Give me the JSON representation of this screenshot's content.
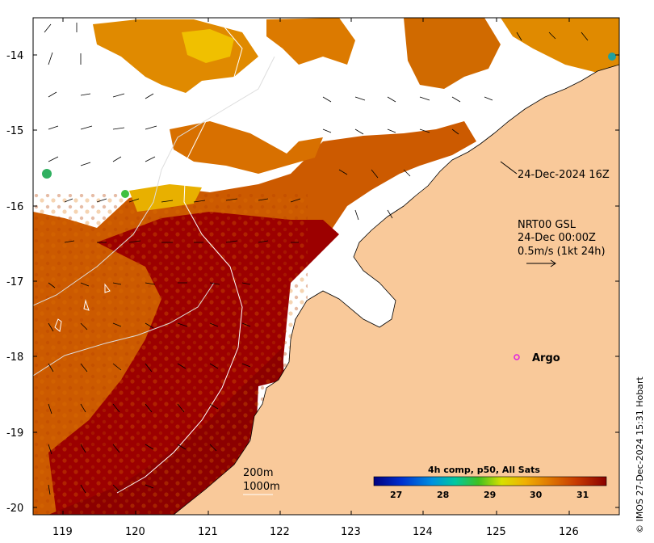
{
  "map": {
    "lon_ticks": [
      "119",
      "120",
      "121",
      "122",
      "123",
      "124",
      "125",
      "126"
    ],
    "lat_ticks": [
      "-14",
      "-15",
      "-16",
      "-17",
      "-18",
      "-19",
      "-20"
    ],
    "lon_range": [
      118.6,
      126.8
    ],
    "lat_range": [
      -20.1,
      -13.5
    ],
    "annotations": {
      "timestamp_callout": "24-Dec-2024 16Z",
      "current_product": "NRT00 GSL",
      "current_time": "24-Dec 00:00Z",
      "current_scale": "0.5m/s (1kt 24h)",
      "argo_label": "Argo",
      "isobath_200": "200m",
      "isobath_1000": "1000m"
    },
    "argo_float": {
      "lon": 125.3,
      "lat": -18.0
    },
    "colorbar": {
      "title": "4h comp, p50, All Sats",
      "tick_labels": [
        "27",
        "28",
        "29",
        "30",
        "31"
      ],
      "range": [
        26.5,
        31.5
      ]
    },
    "credit": "© IMOS 27-Dec-2024 15:31 Hobart",
    "colors": {
      "land": "#f9c99a",
      "hot": "#9c0000",
      "warm": "#cc5a00",
      "mid": "#e08a00",
      "cool": "#f0c000",
      "cloud": "#ffffff"
    }
  }
}
